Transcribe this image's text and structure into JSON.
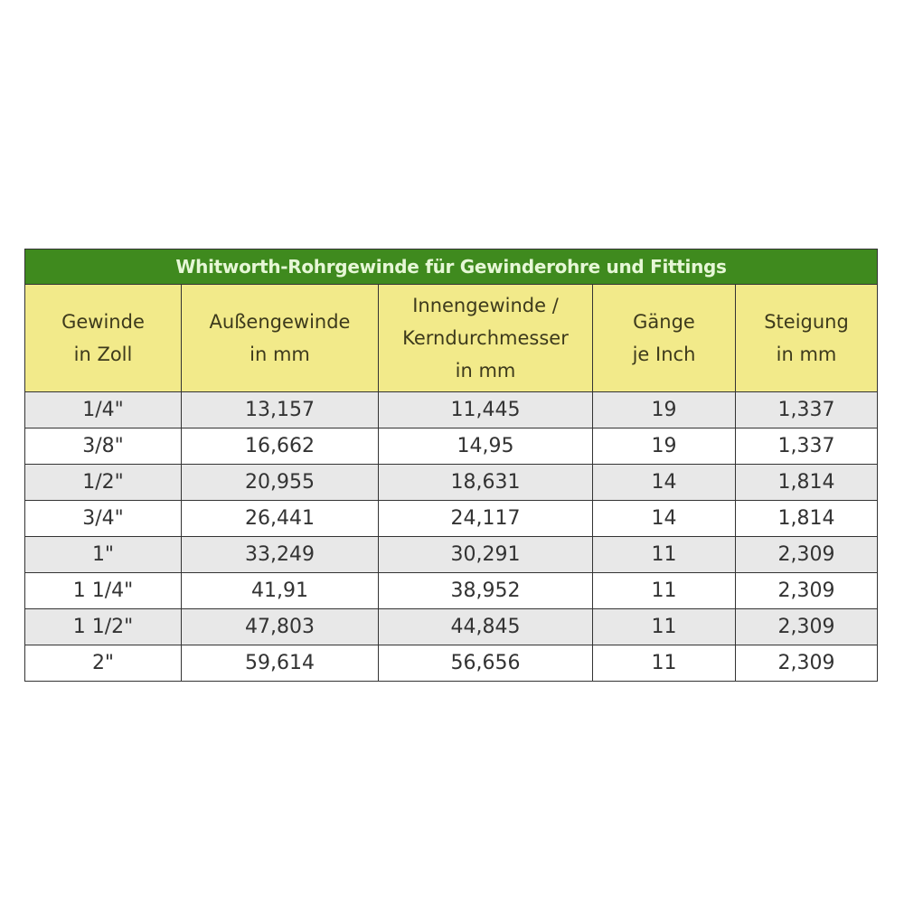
{
  "title": "Whitworth-Rohrgewinde für Gewinderohre und Fittings",
  "columns": [
    [
      "Gewinde",
      "in Zoll"
    ],
    [
      "Außengewinde",
      "in mm"
    ],
    [
      "Innengewinde /",
      "Kerndurchmesser",
      "in mm"
    ],
    [
      "Gänge",
      "je Inch"
    ],
    [
      "Steigung",
      "in mm"
    ]
  ],
  "rows": [
    [
      "1/4\"",
      "13,157",
      "11,445",
      "19",
      "1,337"
    ],
    [
      "3/8\"",
      "16,662",
      "14,95",
      "19",
      "1,337"
    ],
    [
      "1/2\"",
      "20,955",
      "18,631",
      "14",
      "1,814"
    ],
    [
      "3/4\"",
      "26,441",
      "24,117",
      "14",
      "1,814"
    ],
    [
      "1\"",
      "33,249",
      "30,291",
      "11",
      "2,309"
    ],
    [
      "1 1/4\"",
      "41,91",
      "38,952",
      "11",
      "2,309"
    ],
    [
      "1 1/2\"",
      "47,803",
      "44,845",
      "11",
      "2,309"
    ],
    [
      "2\"",
      "59,614",
      "56,656",
      "11",
      "2,309"
    ]
  ],
  "colors": {
    "title_bg": "#3f8a1e",
    "header_bg": "#f2ea8a",
    "alt_row_bg": "#e8e8e8"
  }
}
